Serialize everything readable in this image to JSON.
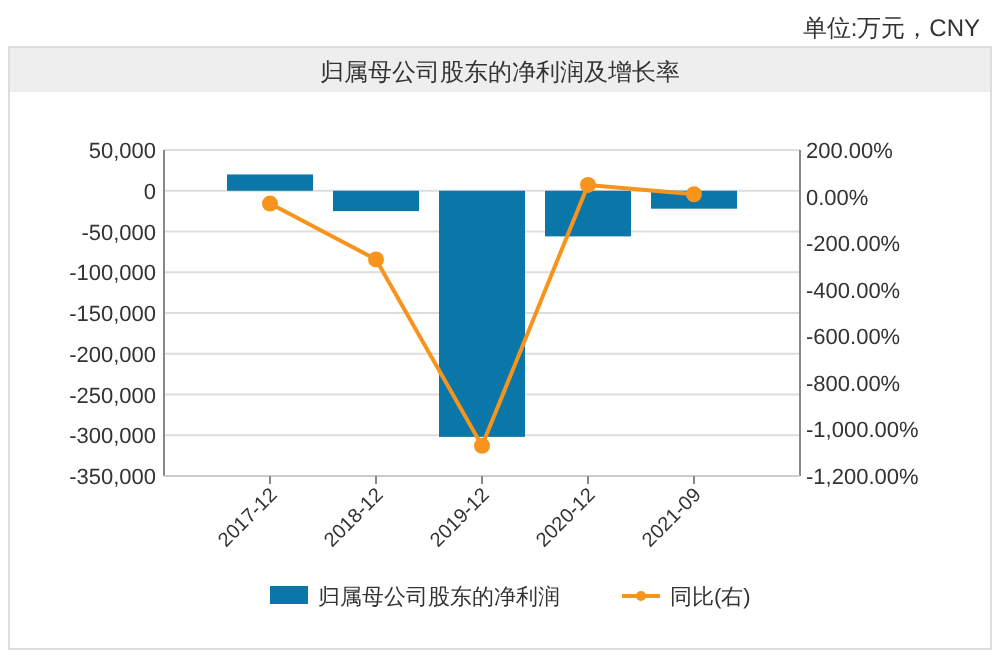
{
  "chart_data": {
    "type": "bar",
    "title": "归属母公司股东的净利润及增长率",
    "annotations": [
      "单位:万元，CNY"
    ],
    "categories": [
      "2017-12",
      "2018-12",
      "2019-12",
      "2020-12",
      "2021-09"
    ],
    "series": [
      {
        "name": "归属母公司股东的净利润",
        "color": "#0a77a8",
        "values": [
          20000,
          -25000,
          -302000,
          -56000,
          -22000
        ]
      },
      {
        "name": "同比(右)",
        "type": "line",
        "axis": "y2",
        "color": "#f7941d",
        "marker": "circle",
        "values": [
          -30,
          -270,
          -1070,
          50,
          10
        ]
      }
    ],
    "ylim": [
      -350000,
      50000
    ],
    "yticks": [
      {
        "value": 50000,
        "label": "50,000"
      },
      0,
      {
        "value": -50000,
        "label": "-50,000"
      },
      {
        "value": -100000,
        "label": "-100,000"
      },
      {
        "value": -150000,
        "label": "-150,000"
      },
      {
        "value": -200000,
        "label": "-200,000"
      },
      {
        "value": -250000,
        "label": "-250,000"
      },
      {
        "value": -300000,
        "label": "-300,000"
      },
      {
        "value": -350000,
        "label": "-350,000"
      }
    ],
    "y2lim": [
      -1200,
      200
    ],
    "y2ticks": [
      {
        "value": 200,
        "label": "200.00%"
      },
      {
        "value": 0,
        "label": "0.00%"
      },
      {
        "value": -200,
        "label": "-200.00%"
      },
      {
        "value": -400,
        "label": "-400.00%"
      },
      {
        "value": -600,
        "label": "-600.00%"
      },
      {
        "value": -800,
        "label": "-800.00%"
      },
      {
        "value": -1000,
        "label": "-1,000.00%"
      },
      {
        "value": -1200,
        "label": "-1,200.00%"
      }
    ],
    "grid": "y",
    "legend": "bottom"
  }
}
